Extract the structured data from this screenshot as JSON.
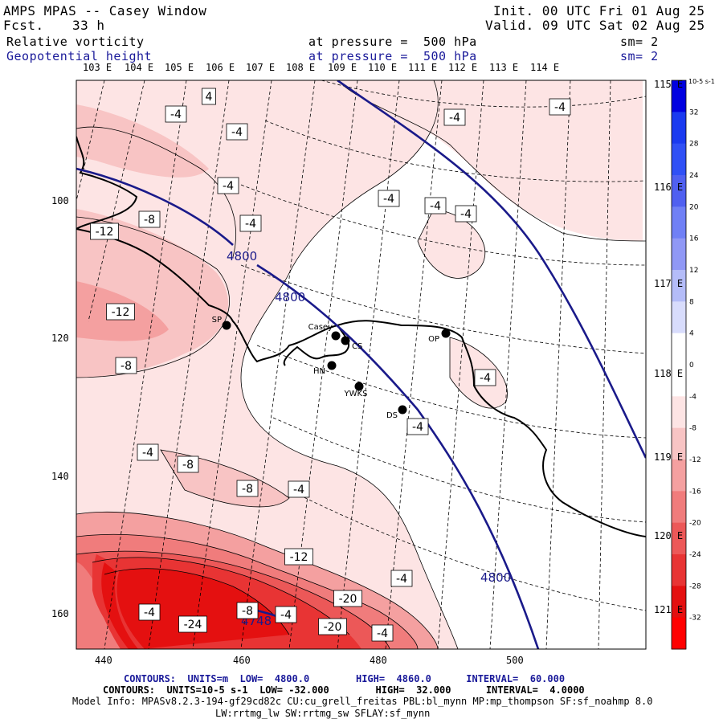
{
  "header": {
    "title": "AMPS MPAS -- Casey Window",
    "fcst_label": "Fcst.",
    "fcst_value": "33 h",
    "init": "Init. 00 UTC Fri 01 Aug 25",
    "valid": "Valid. 09 UTC Sat 02 Aug 25",
    "field1_name": "Relative vorticity",
    "field1_level": "at pressure =  500 hPa",
    "field1_sm": "sm= 2",
    "field2_name": "Geopotential height",
    "field2_level": "at pressure =  500 hPa",
    "field2_sm": "sm= 2"
  },
  "lon_top": [
    "103 E",
    "104 E",
    "105 E",
    "106 E",
    "107 E",
    "108 E",
    "109 E",
    "110 E",
    "111 E",
    "112 E",
    "113 E",
    "114 E"
  ],
  "lon_right": [
    "115 E",
    "116 E",
    "117 E",
    "118 E",
    "119 E",
    "120 E",
    "121 E"
  ],
  "y_ticks": [
    "100",
    "120",
    "140",
    "160"
  ],
  "x_ticks": [
    "440",
    "460",
    "480",
    "500"
  ],
  "colorbar": {
    "unit": "10-5 s-1",
    "labels": [
      "32",
      "28",
      "24",
      "20",
      "16",
      "12",
      "8",
      "4",
      "0",
      "-4",
      "-8",
      "-12",
      "-16",
      "-20",
      "-24",
      "-28",
      "-32"
    ],
    "colors": [
      "#0000e0",
      "#1a3af0",
      "#3050f5",
      "#5060f0",
      "#7080f5",
      "#9098f5",
      "#b4bcf8",
      "#d8dcfc",
      "#ffffff",
      "#ffffff",
      "#fde4e4",
      "#f8c4c4",
      "#f4a0a0",
      "#f07c7c",
      "#ec5858",
      "#e83434",
      "#e41010",
      "#ff0000"
    ]
  },
  "stations": [
    {
      "name": "SP"
    },
    {
      "name": "Casey"
    },
    {
      "name": "CS"
    },
    {
      "name": "HN"
    },
    {
      "name": "YWKS"
    },
    {
      "name": "DS"
    },
    {
      "name": "OP"
    }
  ],
  "vorticity_labels": [
    "4",
    "-4",
    "-4",
    "-4",
    "-8",
    "-4",
    "-12",
    "-4",
    "-4",
    "-4",
    "-4",
    "-4",
    "-12",
    "-8",
    "-4",
    "-4",
    "-4",
    "-8",
    "-8",
    "-4",
    "-12",
    "-4",
    "-20",
    "-4",
    "-8",
    "-4",
    "-20",
    "-24",
    "-4"
  ],
  "height_labels": [
    "4800",
    "4800",
    "4800",
    "4748"
  ],
  "footer": {
    "line1": "CONTOURS:  UNITS=m  LOW=  4800.0        HIGH=  4860.0      INTERVAL=  60.000",
    "line2": "CONTOURS:  UNITS=10-5 s-1  LOW= -32.000        HIGH=  32.000      INTERVAL=  4.0000",
    "line3": "Model Info: MPASv8.2.3-194-gf29cd82c CU:cu_grell_freitas PBL:bl_mynn MP:mp_thompson SF:sf_noahmp 8.0",
    "line4": "LW:rrtmg_lw SW:rrtmg_sw SFLAY:sf_mynn"
  }
}
